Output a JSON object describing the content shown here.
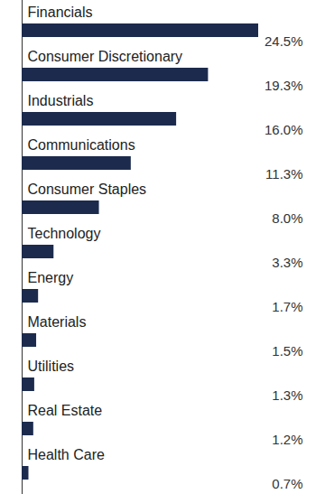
{
  "chart_data": {
    "type": "bar",
    "orientation": "horizontal",
    "categories": [
      "Financials",
      "Consumer Discretionary",
      "Industrials",
      "Communications",
      "Consumer Staples",
      "Technology",
      "Energy",
      "Materials",
      "Utilities",
      "Real Estate",
      "Health Care"
    ],
    "values": [
      24.5,
      19.3,
      16.0,
      11.3,
      8.0,
      3.3,
      1.7,
      1.5,
      1.3,
      1.2,
      0.7
    ],
    "value_labels": [
      "24.5%",
      "19.3%",
      "16.0%",
      "11.3%",
      "8.0%",
      "3.3%",
      "1.7%",
      "1.5%",
      "1.3%",
      "1.2%",
      "0.7%"
    ],
    "color": "#1c2b4d",
    "data_labels": true,
    "tick_labels": "y"
  }
}
